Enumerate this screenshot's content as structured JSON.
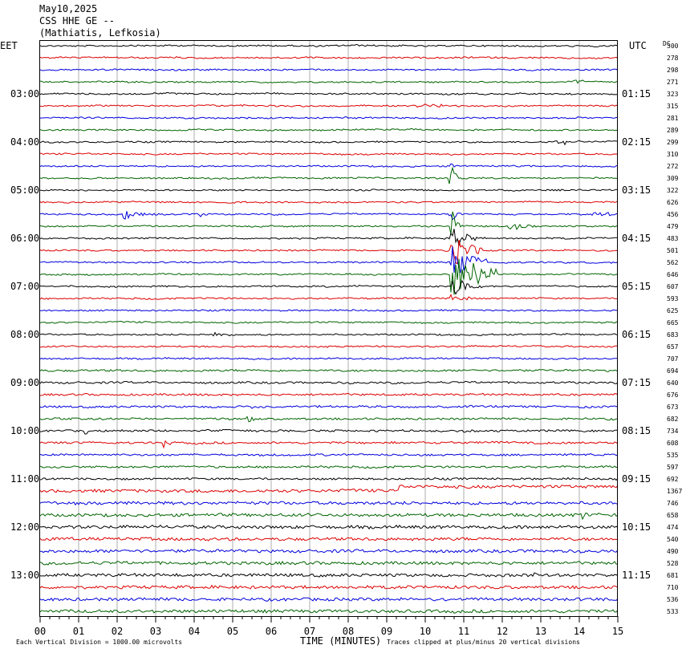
{
  "header": {
    "date": "May10,2025",
    "station": "CSS HHE GE --",
    "location": "(Mathiatis, Lefkosia)"
  },
  "footer": {
    "scale_note": "Each Vertical Division = 1000.00 microvolts",
    "clip_note": "Traces clipped at plus/minus 20 vertical divisions"
  },
  "chart_data": {
    "type": "line",
    "title": "CSS HHE GE --",
    "xlabel": "TIME (MINUTES)",
    "ylabel_left": "EET",
    "ylabel_right": "UTC",
    "dc_label": "DC",
    "xlim": [
      0,
      15
    ],
    "x_ticks": [
      "00",
      "01",
      "02",
      "03",
      "04",
      "05",
      "06",
      "07",
      "08",
      "09",
      "10",
      "11",
      "12",
      "13",
      "14",
      "15"
    ],
    "trace_colors": [
      "#000000",
      "#dd0000",
      "#0000dd",
      "#006400"
    ],
    "left_hour_labels": [
      {
        "row": 4,
        "text": "03:00"
      },
      {
        "row": 8,
        "text": "04:00"
      },
      {
        "row": 12,
        "text": "05:00"
      },
      {
        "row": 16,
        "text": "06:00"
      },
      {
        "row": 20,
        "text": "07:00"
      },
      {
        "row": 24,
        "text": "08:00"
      },
      {
        "row": 28,
        "text": "09:00"
      },
      {
        "row": 32,
        "text": "10:00"
      },
      {
        "row": 36,
        "text": "11:00"
      },
      {
        "row": 40,
        "text": "12:00"
      },
      {
        "row": 44,
        "text": "13:00"
      }
    ],
    "right_hour_labels": [
      {
        "row": 4,
        "text": "01:15"
      },
      {
        "row": 8,
        "text": "02:15"
      },
      {
        "row": 12,
        "text": "03:15"
      },
      {
        "row": 16,
        "text": "04:15"
      },
      {
        "row": 20,
        "text": "05:15"
      },
      {
        "row": 24,
        "text": "06:15"
      },
      {
        "row": 28,
        "text": "07:15"
      },
      {
        "row": 32,
        "text": "08:15"
      },
      {
        "row": 36,
        "text": "09:15"
      },
      {
        "row": 40,
        "text": "10:15"
      },
      {
        "row": 44,
        "text": "11:15"
      }
    ],
    "dc_offsets": [
      "300",
      "278",
      "298",
      "271",
      "323",
      "315",
      "281",
      "289",
      "299",
      "310",
      "272",
      "309",
      "322",
      "626",
      "456",
      "479",
      "483",
      "501",
      "562",
      "646",
      "607",
      "593",
      "625",
      "665",
      "683",
      "657",
      "707",
      "694",
      "640",
      "676",
      "673",
      "682",
      "734",
      "608",
      "535",
      "597",
      "692",
      "1367",
      "746",
      "658",
      "474",
      "540",
      "490",
      "528",
      "681",
      "710",
      "536",
      "533"
    ],
    "events": [
      {
        "row": 5,
        "minute": 9.8,
        "amplitude": 0.35,
        "width": 0.9
      },
      {
        "row": 10,
        "minute": 10.7,
        "amplitude": 0.35,
        "width": 0.1
      },
      {
        "row": 11,
        "minute": 10.65,
        "amplitude": 5.0,
        "width": 0.05
      },
      {
        "row": 14,
        "minute": 2.2,
        "amplitude": 0.8,
        "width": 0.4
      },
      {
        "row": 14,
        "minute": 4.2,
        "amplitude": 0.5,
        "width": 0.3
      },
      {
        "row": 14,
        "minute": 10.65,
        "amplitude": 2.0,
        "width": 0.1
      },
      {
        "row": 14,
        "minute": 14.4,
        "amplitude": 0.8,
        "width": 0.3
      },
      {
        "row": 15,
        "minute": 12.2,
        "amplitude": 0.9,
        "width": 0.4
      },
      {
        "row": 15,
        "minute": 10.7,
        "amplitude": 3.0,
        "width": 0.1
      },
      {
        "row": 16,
        "minute": 10.7,
        "amplitude": 2.0,
        "width": 0.3
      },
      {
        "row": 17,
        "minute": 10.7,
        "amplitude": 3.0,
        "width": 0.4
      },
      {
        "row": 18,
        "minute": 10.7,
        "amplitude": 3.0,
        "width": 0.6
      },
      {
        "row": 19,
        "minute": 10.7,
        "amplitude": 4.2,
        "width": 0.8
      },
      {
        "row": 20,
        "minute": 10.75,
        "amplitude": 1.5,
        "width": 0.4
      },
      {
        "row": 21,
        "minute": 10.7,
        "amplitude": 0.6,
        "width": 0.3
      },
      {
        "row": 3,
        "minute": 13.9,
        "amplitude": 0.4,
        "width": 0.2
      },
      {
        "row": 8,
        "minute": 13.4,
        "amplitude": 0.6,
        "width": 0.4
      },
      {
        "row": 33,
        "minute": 3.25,
        "amplitude": 1.3,
        "width": 0.1
      },
      {
        "row": 32,
        "minute": 1.2,
        "amplitude": 0.8,
        "width": 0.1
      },
      {
        "row": 30,
        "minute": 5.4,
        "amplitude": 0.7,
        "width": 0.1
      },
      {
        "row": 31,
        "minute": 5.4,
        "amplitude": 0.7,
        "width": 0.1
      },
      {
        "row": 39,
        "minute": 14.1,
        "amplitude": 0.6,
        "width": 0.3
      },
      {
        "row": 44,
        "minute": 12.8,
        "amplitude": 0.4,
        "width": 0.3
      },
      {
        "row": 24,
        "minute": 4.5,
        "amplitude": 0.5,
        "width": 0.2
      }
    ],
    "drift": [
      {
        "row": 37,
        "start_minute": 9.3,
        "end_minute": 15,
        "offset": 0.35
      }
    ]
  }
}
